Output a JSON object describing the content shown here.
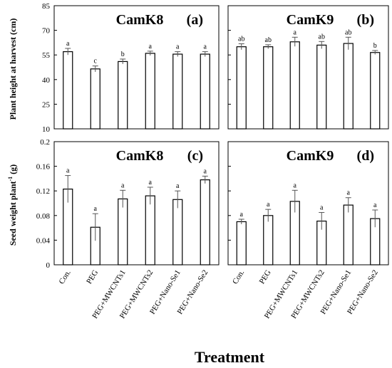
{
  "figure": {
    "xlabel": "Treatment",
    "ylabel_top": "Plant height at harvest (cm)",
    "ylabel_bottom_main": "Seed weight plant",
    "ylabel_bottom_sup": "-1",
    "ylabel_bottom_unit": " (g)"
  },
  "chart_data": [
    {
      "id": "a",
      "type": "bar",
      "title": "CamK8",
      "tag": "(a)",
      "ylabel": "Plant height at harvest (cm)",
      "ylim": [
        10,
        85
      ],
      "yticks": [
        "10",
        "25",
        "40",
        "55",
        "70",
        "85"
      ],
      "categories": [
        "Con.",
        "PEG",
        "PEG+MWCNTs1",
        "PEG+MWCNTs2",
        "PEG+Nano-Se1",
        "PEG+Nano-Se2"
      ],
      "values": [
        57,
        46.5,
        51,
        56,
        55.5,
        55.5
      ],
      "errors": [
        2,
        1.8,
        1.5,
        1.3,
        1.5,
        1.5
      ],
      "letters": [
        "a",
        "c",
        "b",
        "a",
        "a",
        "a"
      ]
    },
    {
      "id": "b",
      "type": "bar",
      "title": "CamK9",
      "tag": "(b)",
      "ylim": [
        10,
        85
      ],
      "categories": [
        "Con.",
        "PEG",
        "PEG+MWCNTs1",
        "PEG+MWCNTs2",
        "PEG+Nano-Se1",
        "PEG+Nano-Se2"
      ],
      "values": [
        60,
        60,
        63,
        61,
        62,
        56.5
      ],
      "errors": [
        1.8,
        1.2,
        2.8,
        2.2,
        3.8,
        1.2
      ],
      "letters": [
        "ab",
        "ab",
        "a",
        "ab",
        "ab",
        "b"
      ]
    },
    {
      "id": "c",
      "type": "bar",
      "title": "CamK8",
      "tag": "(c)",
      "ylabel": "Seed weight plant-1 (g)",
      "ylim": [
        0,
        0.2
      ],
      "yticks": [
        "0",
        "0.04",
        "0.08",
        "0.12",
        "0.16",
        "0.2"
      ],
      "categories": [
        "Con.",
        "PEG",
        "PEG+MWCNTs1",
        "PEG+MWCNTs2",
        "PEG+Nano-Se1",
        "PEG+Nano-Se2"
      ],
      "values": [
        0.123,
        0.061,
        0.107,
        0.112,
        0.106,
        0.138
      ],
      "errors": [
        0.022,
        0.022,
        0.014,
        0.014,
        0.014,
        0.006
      ],
      "letters": [
        "a",
        "a",
        "a",
        "a",
        "a",
        "a"
      ]
    },
    {
      "id": "d",
      "type": "bar",
      "title": "CamK9",
      "tag": "(d)",
      "ylim": [
        0,
        0.2
      ],
      "categories": [
        "Con.",
        "PEG",
        "PEG+MWCNTs1",
        "PEG+MWCNTs2",
        "PEG+Nano-Se1",
        "PEG+Nano-Se2"
      ],
      "values": [
        0.07,
        0.08,
        0.103,
        0.071,
        0.097,
        0.075
      ],
      "errors": [
        0.004,
        0.01,
        0.018,
        0.014,
        0.012,
        0.014
      ],
      "letters": [
        "a",
        "a",
        "a",
        "a",
        "a",
        "a"
      ]
    }
  ]
}
